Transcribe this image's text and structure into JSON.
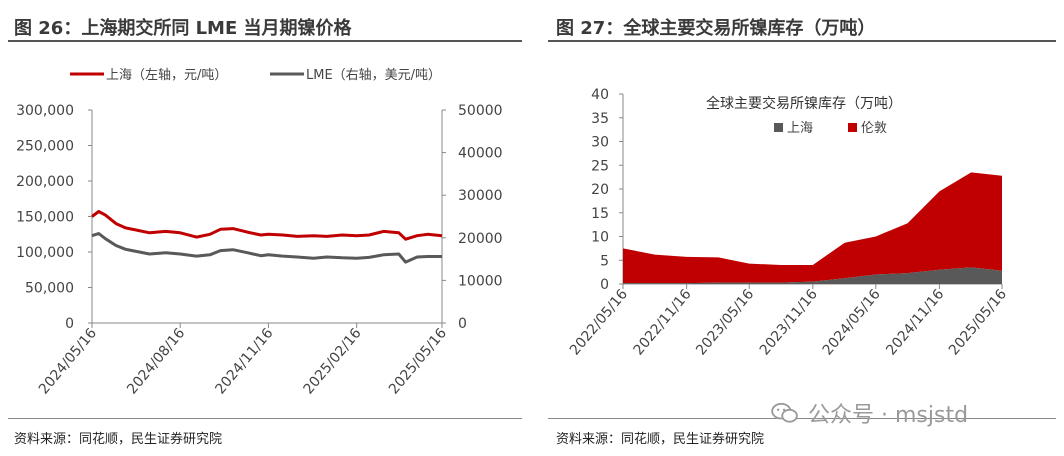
{
  "left": {
    "title": "图 26：上海期交所同 LME 当月期镍价格",
    "source": "资料来源：同花顺，民生证券研究院"
  },
  "right": {
    "title": "图 27：全球主要交易所镍库存（万吨）",
    "source": "资料来源：同花顺，民生证券研究院"
  },
  "watermark": {
    "text": "公众号 · msjstd",
    "icon": "wechat-icon"
  },
  "colors": {
    "red": "#c00000",
    "gray": "#595959"
  },
  "chart_data": [
    {
      "type": "line",
      "title": "",
      "x_ticks": [
        "2024/05/16",
        "2024/08/16",
        "2024/11/16",
        "2025/02/16",
        "2025/05/16"
      ],
      "y_left": {
        "ticks": [
          "0",
          "50,000",
          "100,000",
          "150,000",
          "200,000",
          "250,000",
          "300,000"
        ],
        "ylim": [
          0,
          300000
        ]
      },
      "y_right": {
        "ticks": [
          "0",
          "10000",
          "20000",
          "30000",
          "40000",
          "50000"
        ],
        "ylim": [
          0,
          50000
        ]
      },
      "legend_position": "top",
      "series": [
        {
          "name": "上海（左轴，元/吨）",
          "axis": "left",
          "color": "#c00000",
          "x": [
            "2024/05/16",
            "2024/05/23",
            "2024/05/30",
            "2024/06/10",
            "2024/06/20",
            "2024/07/01",
            "2024/07/15",
            "2024/08/01",
            "2024/08/16",
            "2024/09/02",
            "2024/09/16",
            "2024/09/27",
            "2024/10/10",
            "2024/10/25",
            "2024/11/08",
            "2024/11/16",
            "2024/12/01",
            "2024/12/16",
            "2025/01/02",
            "2025/01/16",
            "2025/02/01",
            "2025/02/16",
            "2025/03/01",
            "2025/03/16",
            "2025/04/01",
            "2025/04/08",
            "2025/04/20",
            "2025/05/01",
            "2025/05/16"
          ],
          "values": [
            150000,
            157000,
            152000,
            140000,
            134000,
            131000,
            127000,
            129000,
            127000,
            121000,
            125000,
            132000,
            133000,
            128000,
            124000,
            125000,
            124000,
            122000,
            123000,
            122000,
            124000,
            123000,
            124000,
            129000,
            127000,
            118000,
            123000,
            125000,
            123000
          ]
        },
        {
          "name": "LME（右轴，美元/吨）",
          "axis": "right",
          "color": "#595959",
          "x": [
            "2024/05/16",
            "2024/05/23",
            "2024/05/30",
            "2024/06/10",
            "2024/06/20",
            "2024/07/01",
            "2024/07/15",
            "2024/08/01",
            "2024/08/16",
            "2024/09/02",
            "2024/09/16",
            "2024/09/27",
            "2024/10/10",
            "2024/10/25",
            "2024/11/08",
            "2024/11/16",
            "2024/12/01",
            "2024/12/16",
            "2025/01/02",
            "2025/01/16",
            "2025/02/01",
            "2025/02/16",
            "2025/03/01",
            "2025/03/16",
            "2025/04/01",
            "2025/04/08",
            "2025/04/20",
            "2025/05/01",
            "2025/05/16"
          ],
          "values": [
            20500,
            21000,
            19800,
            18200,
            17300,
            16800,
            16200,
            16500,
            16200,
            15700,
            16000,
            17000,
            17200,
            16500,
            15800,
            16000,
            15700,
            15500,
            15200,
            15500,
            15300,
            15200,
            15400,
            16000,
            16200,
            14300,
            15500,
            15600,
            15600
          ]
        }
      ]
    },
    {
      "type": "area",
      "title": "全球主要交易所镍库存（万吨）",
      "x_ticks": [
        "2022/05/16",
        "2022/11/16",
        "2023/05/16",
        "2023/11/16",
        "2024/05/16",
        "2024/11/16",
        "2025/05/16"
      ],
      "y_ticks": [
        "0",
        "5",
        "10",
        "15",
        "20",
        "25",
        "30",
        "35",
        "40"
      ],
      "ylim": [
        0,
        40
      ],
      "stacked": true,
      "legend_position": "top",
      "series": [
        {
          "name": "上海",
          "color": "#595959",
          "x": [
            "2022/05/16",
            "2022/08/16",
            "2022/11/16",
            "2023/02/16",
            "2023/05/16",
            "2023/08/16",
            "2023/11/16",
            "2024/02/16",
            "2024/05/16",
            "2024/08/16",
            "2024/11/16",
            "2025/02/16",
            "2025/05/16"
          ],
          "values": [
            0.2,
            0.2,
            0.2,
            0.3,
            0.3,
            0.3,
            0.5,
            1.2,
            2.0,
            2.3,
            3.0,
            3.5,
            2.8
          ]
        },
        {
          "name": "伦敦",
          "color": "#c00000",
          "x": [
            "2022/05/16",
            "2022/08/16",
            "2022/11/16",
            "2023/02/16",
            "2023/05/16",
            "2023/08/16",
            "2023/11/16",
            "2024/02/16",
            "2024/05/16",
            "2024/08/16",
            "2024/11/16",
            "2025/02/16",
            "2025/05/16"
          ],
          "values": [
            7.3,
            6.0,
            5.5,
            5.3,
            4.0,
            3.7,
            3.5,
            7.5,
            8.0,
            10.5,
            16.5,
            20.0,
            20.0
          ]
        }
      ]
    }
  ]
}
